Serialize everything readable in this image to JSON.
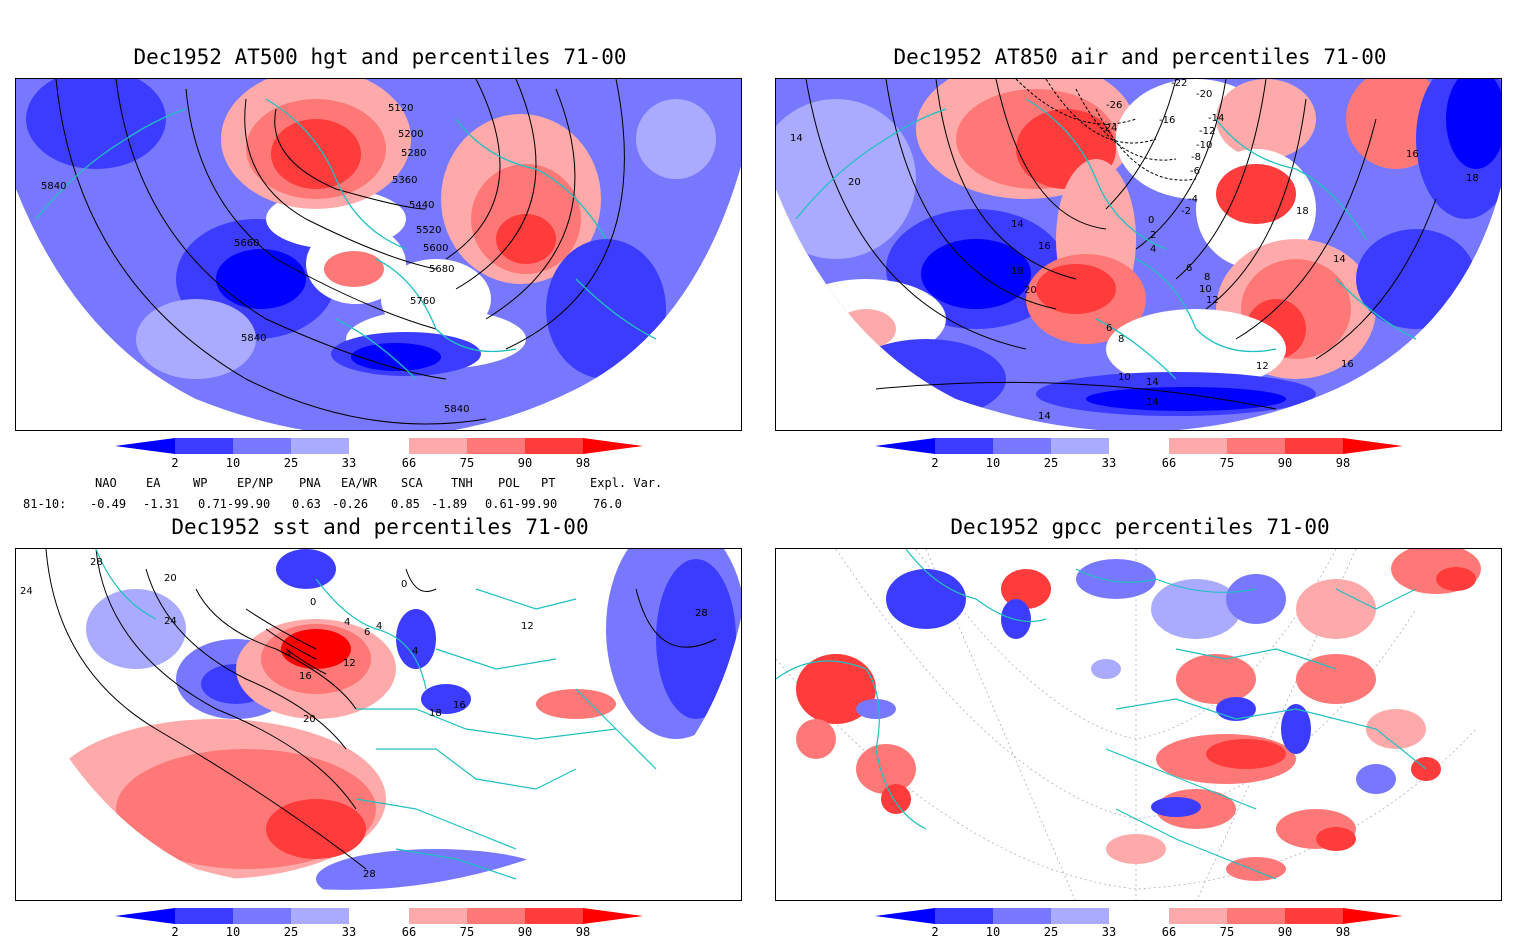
{
  "panels": {
    "p1": {
      "title": "Dec1952 AT500 hgt and percentiles 71-00",
      "contour_labels": [
        "5120",
        "5200",
        "5280",
        "5360",
        "5440",
        "5520",
        "5600",
        "5680",
        "5760",
        "5840",
        "5660",
        "5840",
        "5840"
      ]
    },
    "p2": {
      "title": "Dec1952 AT850 air and percentiles 71-00",
      "contour_labels": [
        "-22",
        "-20",
        "-26",
        "-24",
        "-16",
        "-14",
        "-12",
        "-10",
        "-8",
        "-6",
        "-4",
        "-2",
        "0",
        "2",
        "4",
        "6",
        "8",
        "10",
        "12",
        "14",
        "16",
        "18",
        "20",
        "6",
        "8",
        "10",
        "12",
        "14",
        "16",
        "18",
        "20",
        "14",
        "14",
        "14",
        "16",
        "14",
        "18",
        "16",
        "18",
        "20",
        "-22",
        "-20",
        "16"
      ]
    },
    "p3": {
      "title": "Dec1952 sst and percentiles 71-00",
      "contour_labels": [
        "28",
        "20",
        "24",
        "24",
        "0",
        "0",
        "4",
        "6",
        "4",
        "12",
        "4",
        "16",
        "20",
        "18",
        "16",
        "28",
        "28",
        "12",
        "4"
      ]
    },
    "p4": {
      "title": "Dec1952 gpcc percentiles 71-00"
    }
  },
  "colorbar": {
    "ticks": [
      "2",
      "10",
      "25",
      "33",
      "66",
      "75",
      "90",
      "98"
    ],
    "colors": [
      "#0000ff",
      "#3c3cff",
      "#7878ff",
      "#aaaaff",
      "#ffffff",
      "#ffaaaa",
      "#ff7878",
      "#ff3c3c",
      "#ff0000"
    ]
  },
  "teleconnections": {
    "headers": [
      "NAO",
      "EA",
      "WP",
      "EP/NP",
      "PNA",
      "EA/WR",
      "SCA",
      "TNH",
      "POL",
      "PT",
      "Expl. Var."
    ],
    "row_label": "81-10:",
    "values": [
      "-0.49",
      "-1.31",
      "0.71-99.90",
      "0.63",
      "-0.26",
      "0.85",
      "-1.89",
      "0.61-99.90",
      "76.0"
    ]
  }
}
